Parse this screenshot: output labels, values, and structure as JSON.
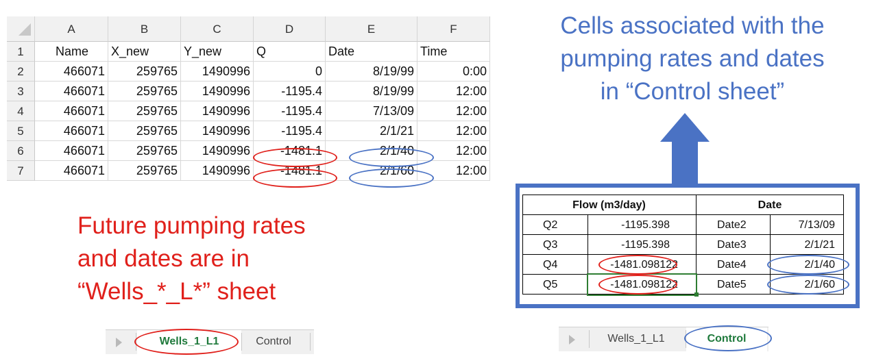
{
  "spreadsheet": {
    "columns": [
      "A",
      "B",
      "C",
      "D",
      "E",
      "F"
    ],
    "header_row": [
      "Name",
      "X_new",
      "Y_new",
      "Q",
      "Date",
      "Time"
    ],
    "rows": [
      {
        "row": "2",
        "name": "466071",
        "x": "259765",
        "y": "1490996",
        "q": "0",
        "date": "8/19/99",
        "time": "0:00"
      },
      {
        "row": "3",
        "name": "466071",
        "x": "259765",
        "y": "1490996",
        "q": "-1195.4",
        "date": "8/19/99",
        "time": "12:00"
      },
      {
        "row": "4",
        "name": "466071",
        "x": "259765",
        "y": "1490996",
        "q": "-1195.4",
        "date": "7/13/09",
        "time": "12:00"
      },
      {
        "row": "5",
        "name": "466071",
        "x": "259765",
        "y": "1490996",
        "q": "-1195.4",
        "date": "2/1/21",
        "time": "12:00"
      },
      {
        "row": "6",
        "name": "466071",
        "x": "259765",
        "y": "1490996",
        "q": "-1481.1",
        "date": "2/1/40",
        "time": "12:00"
      },
      {
        "row": "7",
        "name": "466071",
        "x": "259765",
        "y": "1490996",
        "q": "-1481.1",
        "date": "2/1/60",
        "time": "12:00"
      }
    ],
    "header_row_number": "1"
  },
  "captions": {
    "blue": [
      "Cells associated with the",
      "pumping rates and dates",
      "in “Control sheet”"
    ],
    "red": [
      "Future pumping rates",
      "and dates are in",
      "“Wells_*_L*” sheet"
    ]
  },
  "control_table": {
    "flow_header": "Flow (m3/day)",
    "date_header": "Date",
    "rows": [
      {
        "q_label": "Q2",
        "q_value": "-1195.398",
        "d_label": "Date2",
        "d_value": "7/13/09"
      },
      {
        "q_label": "Q3",
        "q_value": "-1195.398",
        "d_label": "Date3",
        "d_value": "2/1/21"
      },
      {
        "q_label": "Q4",
        "q_value": "-1481.098122",
        "d_label": "Date4",
        "d_value": "2/1/40"
      },
      {
        "q_label": "Q5",
        "q_value": "-1481.098122",
        "d_label": "Date5",
        "d_value": "2/1/60"
      }
    ]
  },
  "tabs_left": {
    "active": "Wells_1_L1",
    "other": "Control"
  },
  "tabs_right": {
    "other": "Wells_1_L1",
    "active": "Control"
  },
  "colors": {
    "red": "#e0201b",
    "blue": "#4a72c4",
    "tab_green": "#1f7a3c"
  }
}
